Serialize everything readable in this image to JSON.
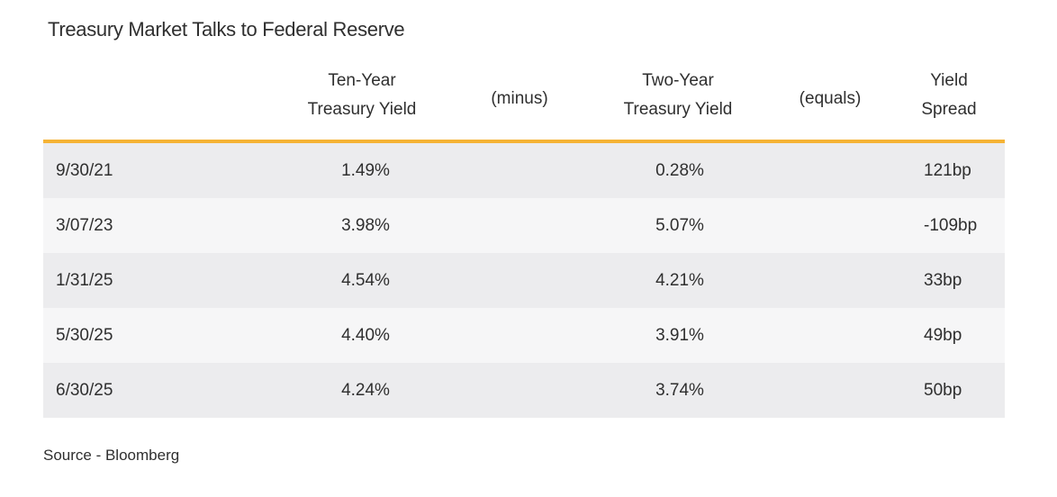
{
  "title": "Treasury Market Talks to Federal Reserve",
  "headers": {
    "ten_year": [
      "Ten-Year",
      "Treasury Yield"
    ],
    "minus": "(minus)",
    "two_year": [
      "Two-Year",
      "Treasury Yield"
    ],
    "equals": "(equals)",
    "spread": [
      "Yield",
      "Spread"
    ]
  },
  "rows": [
    {
      "date": "9/30/21",
      "ten_year": "1.49%",
      "two_year": "0.28%",
      "spread": "121bp"
    },
    {
      "date": "3/07/23",
      "ten_year": "3.98%",
      "two_year": "5.07%",
      "spread": "-109bp"
    },
    {
      "date": "1/31/25",
      "ten_year": "4.54%",
      "two_year": "4.21%",
      "spread": "33bp"
    },
    {
      "date": "5/30/25",
      "ten_year": "4.40%",
      "two_year": "3.91%",
      "spread": "49bp"
    },
    {
      "date": "6/30/25",
      "ten_year": "4.24%",
      "two_year": "3.74%",
      "spread": "50bp"
    }
  ],
  "source": "Source - Bloomberg",
  "colors": {
    "accent_rule": "#f5b335",
    "row_odd": "#ececee",
    "row_even": "#f6f6f7"
  }
}
